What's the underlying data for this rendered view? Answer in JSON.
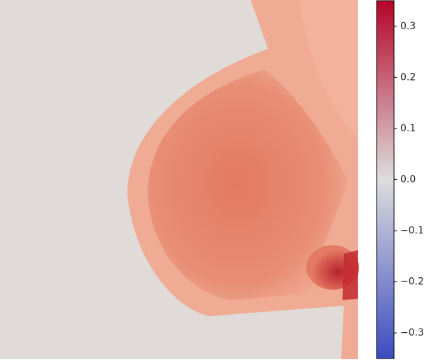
{
  "chart_data": {
    "type": "image",
    "cmap_colors": [
      "#3b4cc0",
      "#dddddd",
      "#b40426"
    ],
    "clim": [
      -0.35,
      0.35
    ],
    "cticks": [
      {
        "value": -0.3,
        "label": "−0.3"
      },
      {
        "value": -0.2,
        "label": "−0.2"
      },
      {
        "value": -0.1,
        "label": "−0.1"
      },
      {
        "value": 0.0,
        "label": "0.0"
      },
      0.1,
      0.2,
      0.3
    ]
  }
}
